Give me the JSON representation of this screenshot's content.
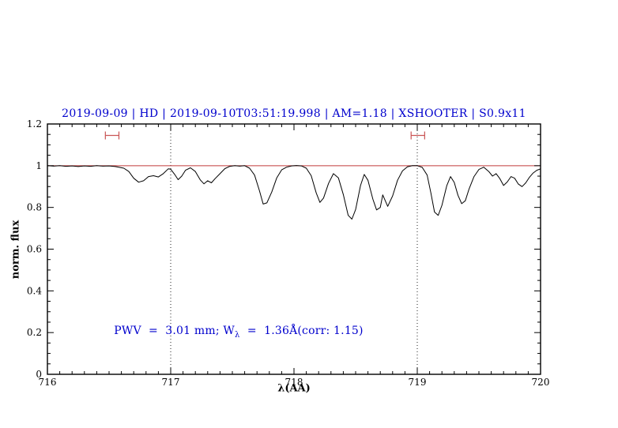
{
  "page": {
    "background": "#ffffff"
  },
  "chart_data": {
    "type": "line",
    "title": "2019-09-09 | HD | 2019-09-10T03:51:19.998 | AM=1.18 | XSHOOTER | S0.9x11",
    "xlabel": "λ(AA)",
    "ylabel": "norm. flux",
    "xlim": [
      716,
      720
    ],
    "ylim": [
      0,
      1.2
    ],
    "x_ticks": [
      716,
      717,
      718,
      719,
      720
    ],
    "x_tick_labels": [
      "716",
      "717",
      "718",
      "719",
      "720"
    ],
    "x_minor_step": 0.1,
    "y_ticks": [
      0,
      0.2,
      0.4,
      0.6,
      0.8,
      1,
      1.2
    ],
    "y_tick_labels": [
      "0",
      "0.2",
      "0.4",
      "0.6",
      "0.8",
      "1",
      "1.2"
    ],
    "y_minor_step": 0.05,
    "grid": false,
    "legend": null,
    "continuum_line": {
      "y": 1.0
    },
    "vertical_dotted_lines": [
      717,
      719
    ],
    "interval_markers": [
      {
        "x_start": 716.47,
        "x_end": 716.58,
        "y": 1.145
      },
      {
        "x_start": 718.95,
        "x_end": 719.06,
        "y": 1.145
      }
    ],
    "annotation": {
      "prefix": "PWV  =  3.01 mm; W",
      "sub": "λ",
      "suffix": "  =  1.36Å(corr: 1.15)",
      "x": 716.54,
      "y": 0.2
    },
    "colors": {
      "title": "#0000cd",
      "annotation": "#0000cd",
      "spectrum": "#000000",
      "continuum": "#c23b3b",
      "markers": "#c95555",
      "guides": "#222222",
      "axis": "#000000"
    },
    "series": [
      {
        "name": "spectrum",
        "x": [
          716.0,
          716.05,
          716.1,
          716.15,
          716.2,
          716.25,
          716.3,
          716.35,
          716.4,
          716.45,
          716.5,
          716.55,
          716.58,
          716.62,
          716.66,
          716.7,
          716.74,
          716.78,
          716.82,
          716.86,
          716.9,
          716.94,
          716.98,
          717.0,
          717.03,
          717.06,
          717.09,
          717.12,
          717.16,
          717.2,
          717.24,
          717.27,
          717.3,
          717.33,
          717.36,
          717.4,
          717.44,
          717.48,
          717.52,
          717.56,
          717.6,
          717.64,
          717.68,
          717.72,
          717.75,
          717.78,
          717.82,
          717.86,
          717.9,
          717.94,
          717.98,
          718.02,
          718.06,
          718.1,
          718.14,
          718.18,
          718.21,
          718.24,
          718.28,
          718.32,
          718.36,
          718.4,
          718.44,
          718.47,
          718.5,
          718.54,
          718.57,
          718.6,
          718.64,
          718.67,
          718.7,
          718.72,
          718.76,
          718.8,
          718.84,
          718.88,
          718.92,
          718.96,
          719.0,
          719.04,
          719.08,
          719.11,
          719.14,
          719.17,
          719.2,
          719.24,
          719.27,
          719.3,
          719.33,
          719.36,
          719.39,
          719.42,
          719.46,
          719.5,
          719.54,
          719.58,
          719.61,
          719.64,
          719.67,
          719.7,
          719.73,
          719.76,
          719.79,
          719.82,
          719.85,
          719.88,
          719.91,
          719.94,
          719.97,
          720.0
        ],
        "y": [
          1.0,
          0.998,
          1.0,
          0.997,
          0.999,
          0.996,
          0.999,
          0.997,
          1.0,
          0.998,
          0.999,
          0.996,
          0.993,
          0.988,
          0.972,
          0.94,
          0.921,
          0.928,
          0.948,
          0.952,
          0.946,
          0.962,
          0.985,
          0.983,
          0.96,
          0.933,
          0.95,
          0.978,
          0.99,
          0.972,
          0.932,
          0.913,
          0.928,
          0.918,
          0.938,
          0.962,
          0.986,
          0.997,
          1.0,
          0.998,
          1.0,
          0.988,
          0.955,
          0.88,
          0.816,
          0.822,
          0.874,
          0.942,
          0.98,
          0.993,
          0.999,
          1.001,
          0.999,
          0.988,
          0.952,
          0.87,
          0.824,
          0.845,
          0.915,
          0.962,
          0.942,
          0.862,
          0.762,
          0.744,
          0.79,
          0.905,
          0.958,
          0.93,
          0.84,
          0.788,
          0.8,
          0.86,
          0.805,
          0.855,
          0.93,
          0.975,
          0.995,
          1.0,
          1.0,
          0.992,
          0.955,
          0.87,
          0.778,
          0.762,
          0.81,
          0.905,
          0.948,
          0.92,
          0.858,
          0.818,
          0.832,
          0.888,
          0.948,
          0.982,
          0.993,
          0.972,
          0.95,
          0.962,
          0.938,
          0.905,
          0.922,
          0.948,
          0.94,
          0.912,
          0.9,
          0.918,
          0.945,
          0.965,
          0.978,
          0.985
        ]
      }
    ]
  }
}
